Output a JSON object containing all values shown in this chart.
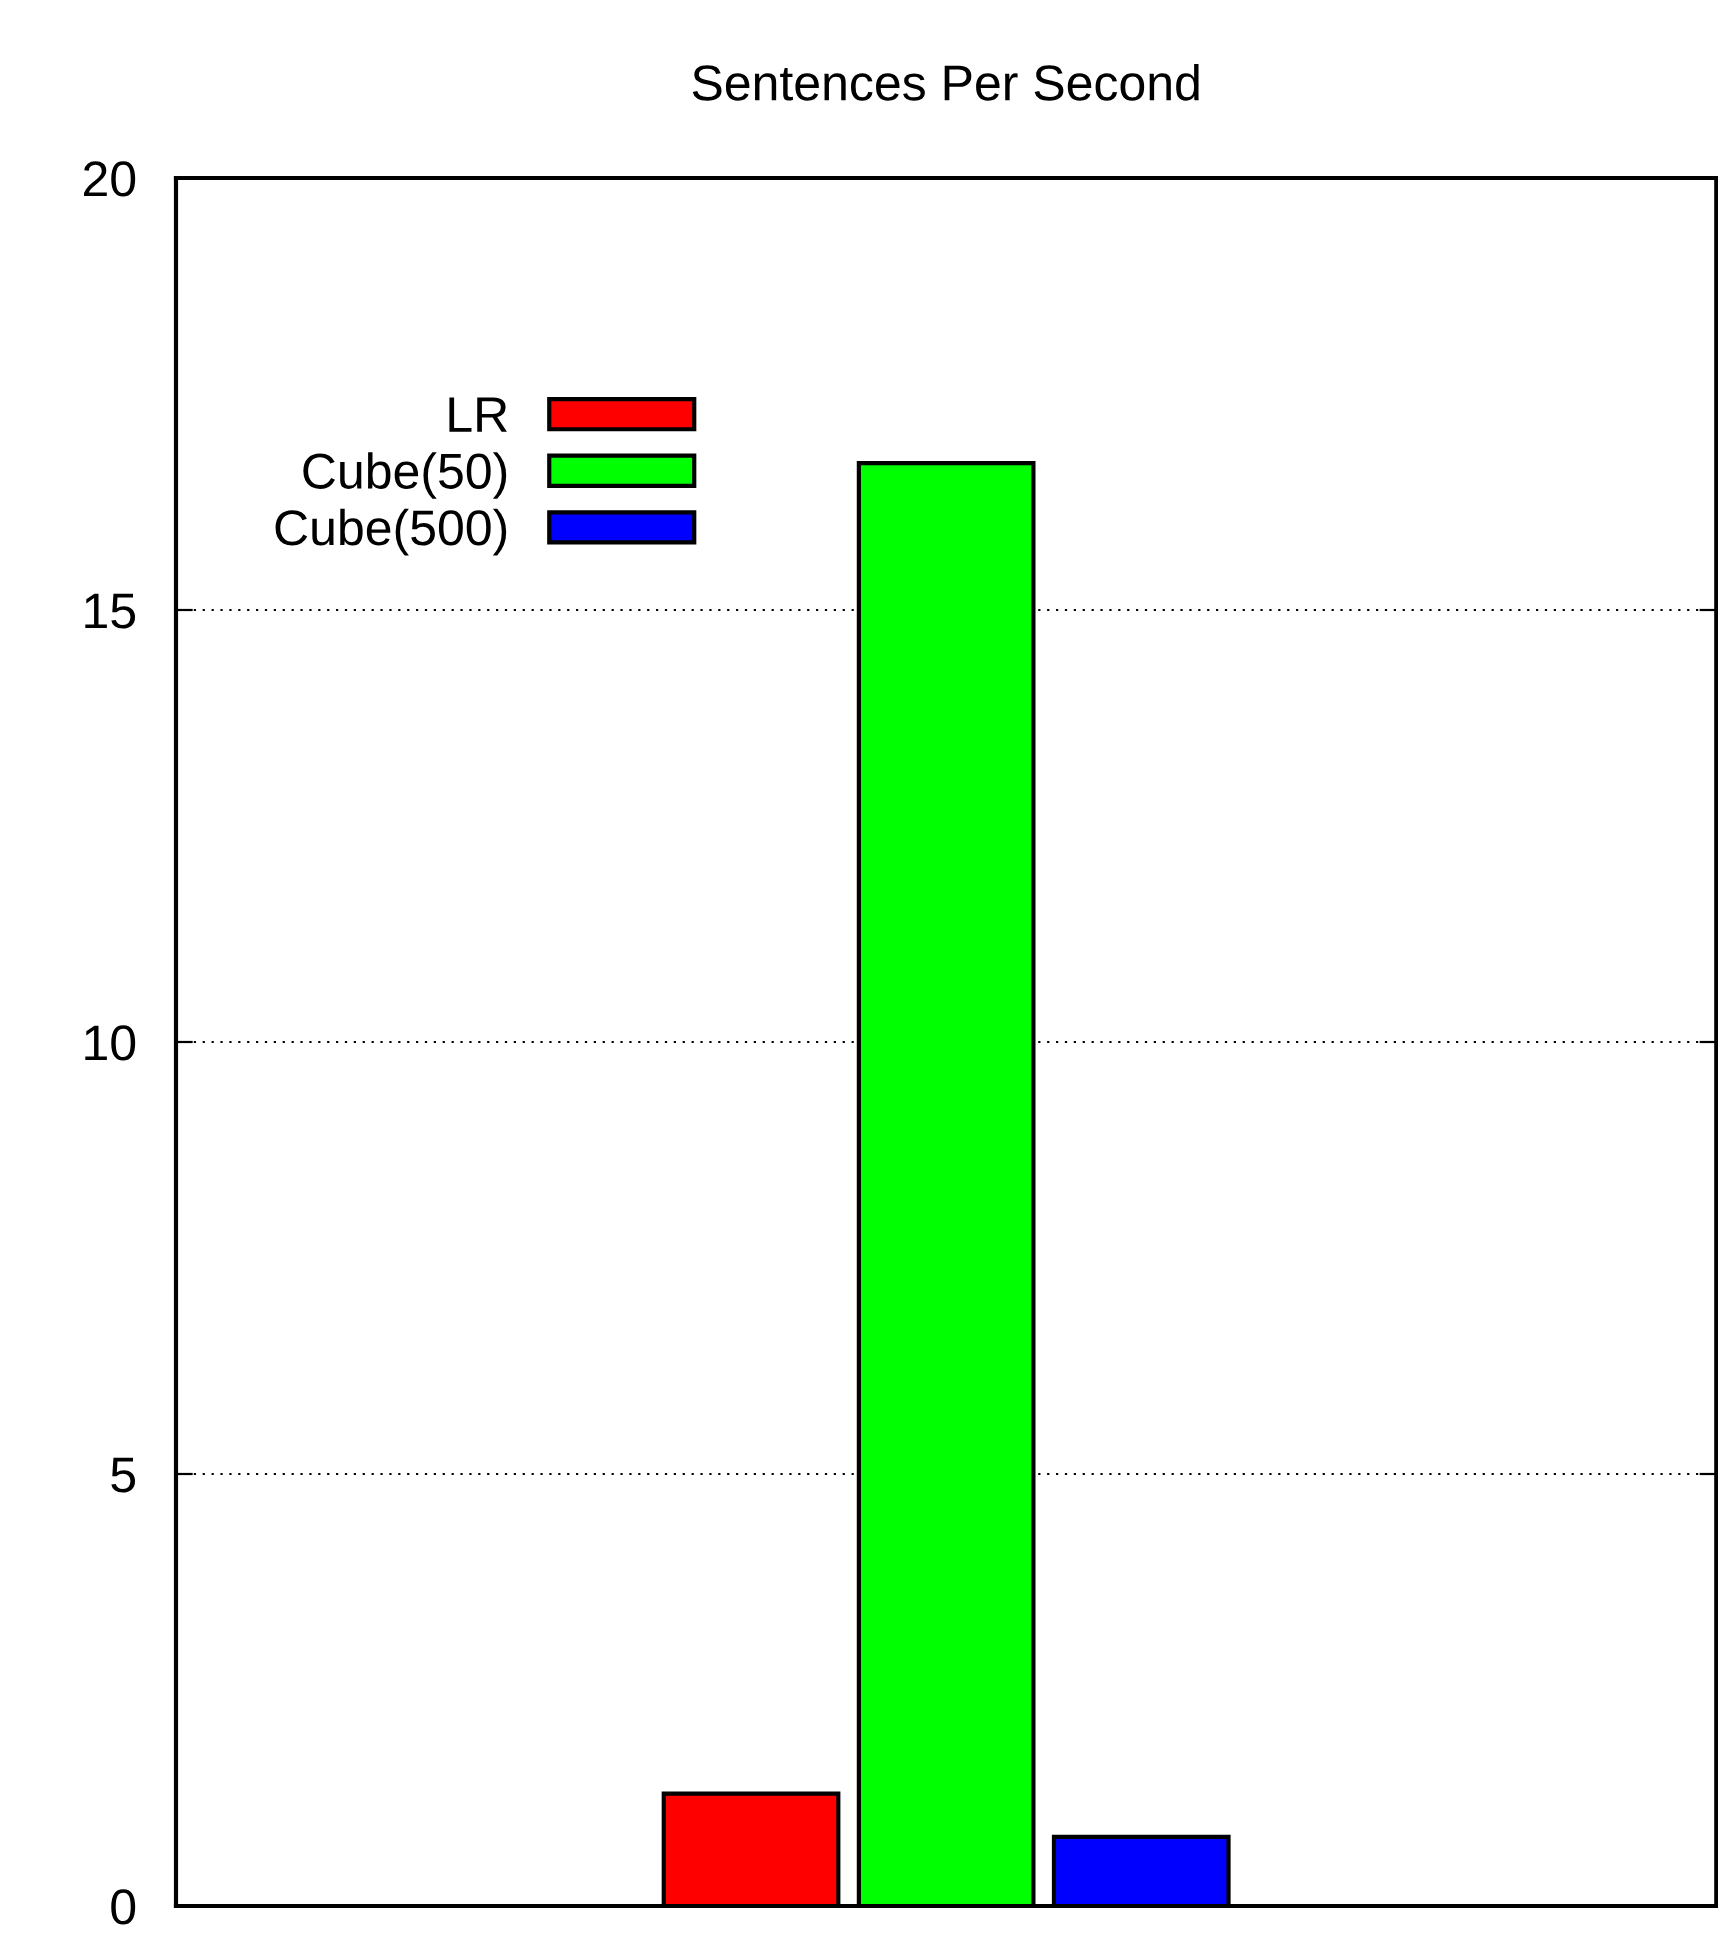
{
  "chart_data": {
    "type": "bar",
    "title": "Sentences Per Second",
    "categories": [
      null
    ],
    "series": [
      {
        "name": "LR",
        "color": "#ff0000",
        "values": [
          1.3
        ]
      },
      {
        "name": "Cube(50)",
        "color": "#00ff00",
        "values": [
          16.7
        ]
      },
      {
        "name": "Cube(500)",
        "color": "#0000ff",
        "values": [
          0.8
        ]
      }
    ],
    "ylim": [
      0,
      20
    ],
    "yticks": [
      0,
      5,
      10,
      15,
      20
    ],
    "grid": "y",
    "legend": "top left",
    "tick_labels": "y"
  }
}
